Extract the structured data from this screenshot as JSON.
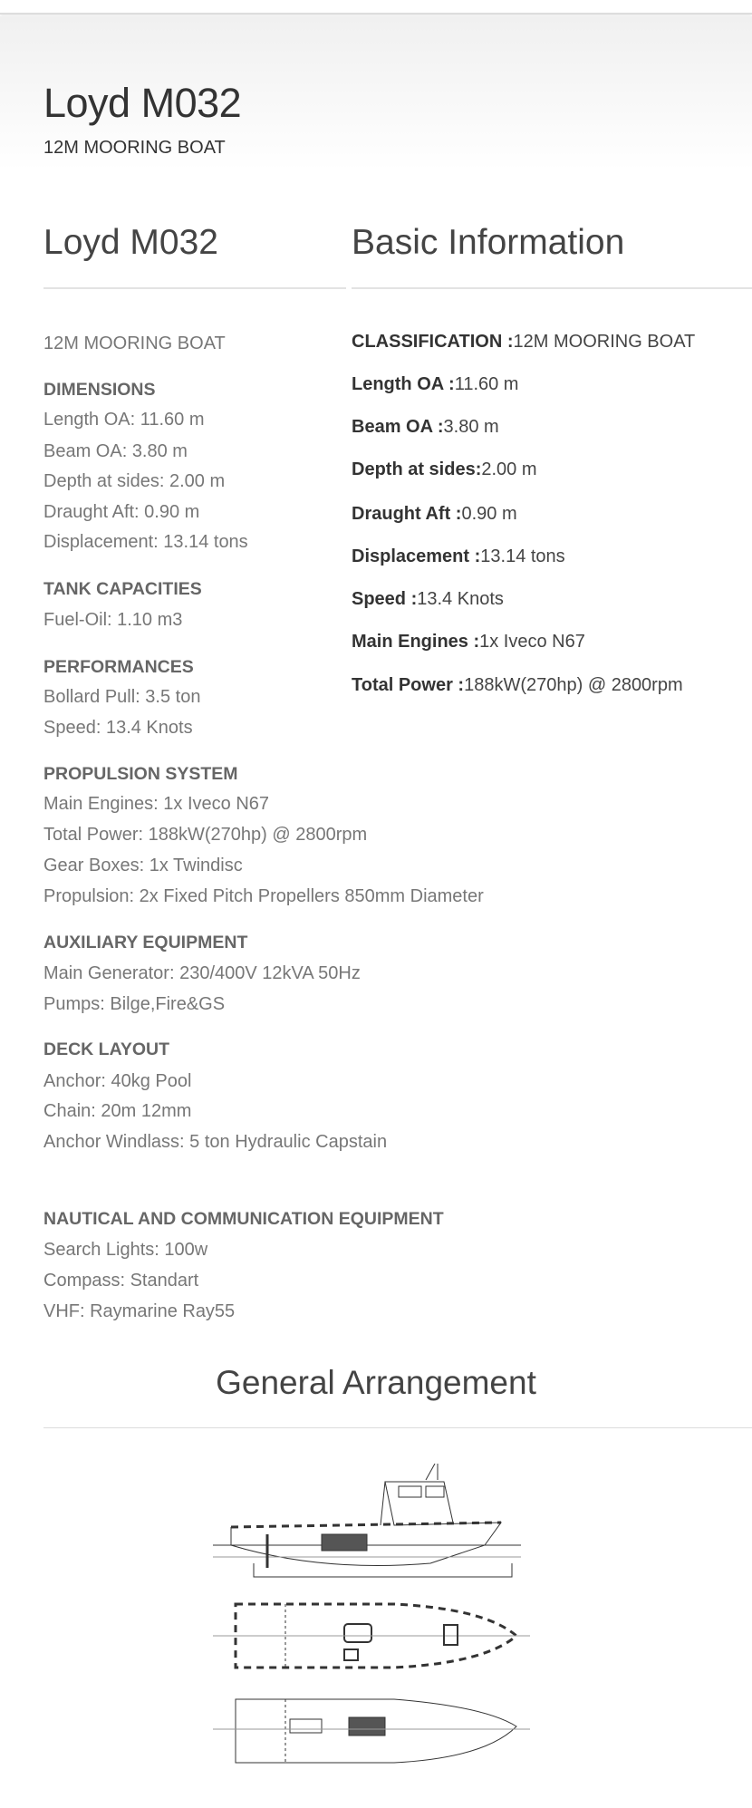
{
  "header": {
    "title": "Loyd M032",
    "subtitle": "12M MOORING BOAT"
  },
  "left": {
    "heading": "Loyd M032",
    "type": "12M MOORING BOAT",
    "groups": [
      {
        "title": "DIMENSIONS",
        "items": [
          "Length OA: 11.60 m",
          "Beam OA: 3.80 m",
          "Depth at sides: 2.00 m",
          "Draught Aft: 0.90 m",
          "Displacement: 13.14 tons"
        ]
      },
      {
        "title": "TANK CAPACITIES",
        "items": [
          "Fuel-Oil: 1.10 m3"
        ]
      },
      {
        "title": "PERFORMANCES",
        "items": [
          "Bollard Pull: 3.5 ton",
          "Speed: 13.4 Knots"
        ]
      },
      {
        "title": "PROPULSION SYSTEM",
        "items": [
          "Main Engines: 1x Iveco N67",
          "Total Power: 188kW(270hp) @ 2800rpm",
          "Gear Boxes: 1x Twindisc",
          "Propulsion: 2x Fixed Pitch Propellers 850mm Diameter"
        ]
      },
      {
        "title": "AUXILIARY EQUIPMENT",
        "items": [
          "Main Generator: 230/400V 12kVA 50Hz",
          "Pumps: Bilge,Fire&GS"
        ]
      },
      {
        "title": "DECK LAYOUT",
        "items": [
          "Anchor: 40kg Pool",
          "Chain: 20m 12mm",
          "Anchor Windlass: 5 ton Hydraulic Capstain"
        ]
      },
      {
        "title": "NAUTICAL AND COMMUNICATION EQUIPMENT",
        "items": [
          "Search Lights: 100w",
          "Compass: Standart",
          "VHF: Raymarine Ray55"
        ]
      }
    ]
  },
  "right": {
    "heading": "Basic Information",
    "rows": [
      {
        "label": "CLASSIFICATION :",
        "value": "12M MOORING BOAT"
      },
      {
        "label": "Length OA :",
        "value": "11.60 m"
      },
      {
        "label": "Beam OA :",
        "value": "3.80 m"
      },
      {
        "label": "Depth at sides:",
        "value": "2.00 m"
      },
      {
        "label": "Draught Aft :",
        "value": "0.90 m"
      },
      {
        "label": "Displacement :",
        "value": "13.14 tons"
      },
      {
        "label": "Speed :",
        "value": "13.4 Knots"
      },
      {
        "label": "Main Engines :",
        "value": "1x Iveco N67"
      },
      {
        "label": "Total Power :",
        "value": "188kW(270hp) @ 2800rpm"
      }
    ]
  },
  "arrangement": {
    "heading": "General Arrangement"
  }
}
